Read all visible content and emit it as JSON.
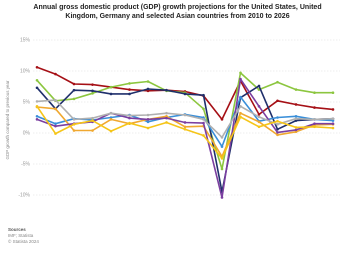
{
  "chart_data": {
    "type": "line",
    "title": "Annual gross domestic product (GDP) growth projections for the United States, United Kingdom, Germany and selected Asian countries from 2010 to 2026",
    "y_label": "GDP growth compared to previous year",
    "source_heading": "Sources",
    "source": "IMF; Statista",
    "copyright": "© Statista 2024",
    "categories": [
      null,
      null,
      null,
      null,
      null,
      null,
      null,
      null,
      null,
      null,
      null,
      null,
      null,
      null,
      null,
      null,
      null
    ],
    "ylim": [
      -10,
      15
    ],
    "yticks": [
      {
        "value": 15,
        "label": "15%"
      },
      {
        "value": 10,
        "label": "10%"
      },
      {
        "value": 5,
        "label": "5%"
      },
      {
        "value": 0,
        "label": "0%"
      },
      {
        "value": -5,
        "label": "-5%"
      },
      {
        "value": -10,
        "label": "-10%"
      }
    ],
    "grid": true,
    "series": [
      {
        "color": "#a50f15",
        "values": [
          10.6,
          9.5,
          7.9,
          7.8,
          7.4,
          7.0,
          6.8,
          6.9,
          6.7,
          6.0,
          2.2,
          8.4,
          3.0,
          5.2,
          4.6,
          4.1,
          3.8
        ]
      },
      {
        "color": "#8cc63f",
        "values": [
          8.5,
          5.2,
          5.5,
          6.4,
          7.4,
          8.0,
          8.3,
          6.8,
          6.5,
          3.9,
          -5.8,
          9.7,
          7.0,
          8.2,
          7.0,
          6.5,
          6.5
        ]
      },
      {
        "color": "#1f2f6b",
        "values": [
          7.3,
          3.9,
          6.9,
          6.8,
          6.3,
          6.3,
          7.1,
          6.9,
          6.3,
          6.1,
          -9.5,
          5.7,
          7.6,
          0.6,
          2.0,
          2.2,
          2.3
        ]
      },
      {
        "color": "#3a8fd9",
        "values": [
          2.7,
          1.5,
          2.3,
          2.1,
          2.5,
          2.9,
          1.8,
          2.5,
          3.0,
          2.5,
          -2.2,
          5.8,
          1.9,
          2.5,
          2.7,
          2.2,
          2.0
        ]
      },
      {
        "color": "#f0a830",
        "values": [
          4.2,
          3.9,
          0.4,
          0.4,
          2.2,
          1.5,
          2.2,
          2.7,
          1.0,
          1.1,
          -3.8,
          3.2,
          1.8,
          -0.3,
          0.2,
          1.3,
          1.4
        ]
      },
      {
        "color": "#7b3fa0",
        "values": [
          2.2,
          1.1,
          1.5,
          1.8,
          3.2,
          2.4,
          2.2,
          2.4,
          1.7,
          1.6,
          -10.4,
          8.7,
          4.3,
          0.1,
          0.5,
          1.5,
          1.5
        ]
      },
      {
        "color": "#b0b0b0",
        "values": [
          5.1,
          5.3,
          2.2,
          2.4,
          3.2,
          2.8,
          2.9,
          3.2,
          2.9,
          2.2,
          -0.7,
          4.3,
          2.6,
          1.4,
          2.3,
          2.2,
          2.3
        ]
      },
      {
        "color": "#f5c518",
        "values": [
          4.3,
          -0.1,
          1.4,
          2.0,
          0.3,
          1.6,
          0.8,
          1.7,
          0.6,
          -0.4,
          -4.1,
          2.6,
          1.0,
          1.9,
          0.9,
          1.0,
          0.8
        ]
      }
    ]
  }
}
